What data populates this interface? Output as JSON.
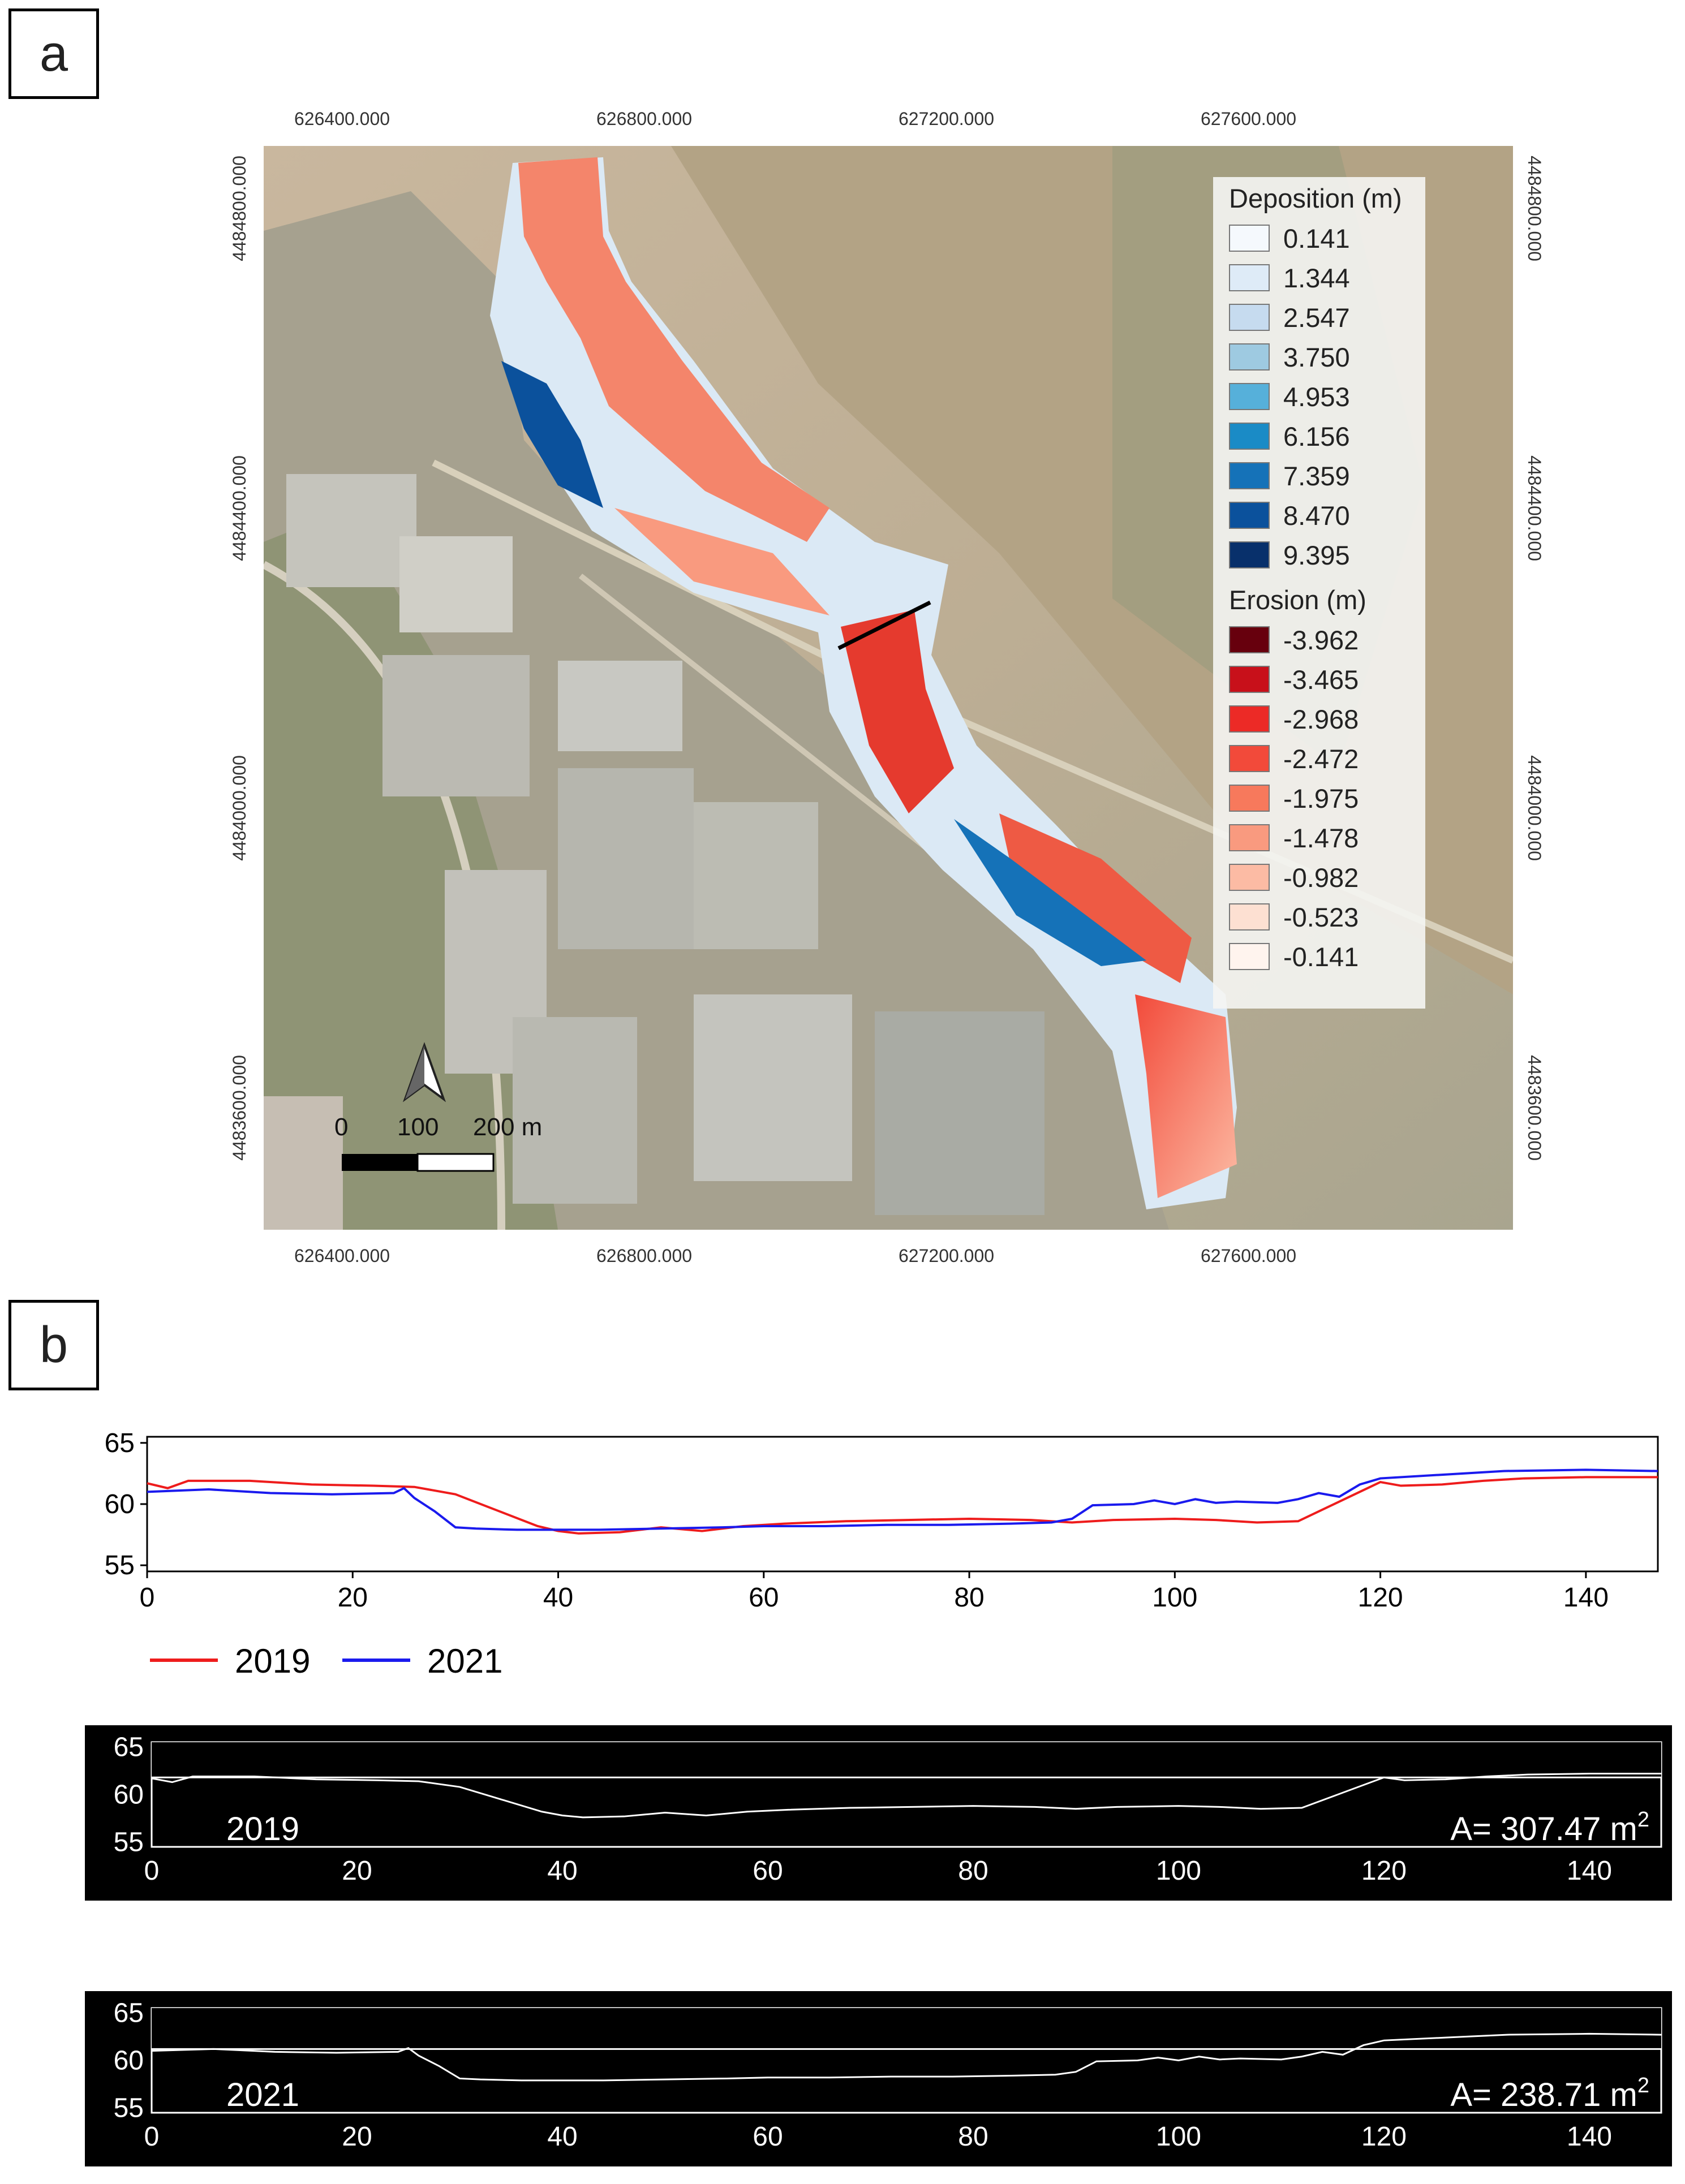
{
  "panel_a": {
    "label": "a",
    "x_ticks": [
      "626400.000",
      "626800.000",
      "627200.000",
      "627600.000"
    ],
    "y_ticks": [
      "4484800.000",
      "4484400.000",
      "4484000.000",
      "4483600.000"
    ],
    "legend": {
      "deposition_title": "Deposition (m)",
      "deposition": [
        {
          "value": "0.141",
          "color": "#f5f9fd"
        },
        {
          "value": "1.344",
          "color": "#deebf7"
        },
        {
          "value": "2.547",
          "color": "#c6dbef"
        },
        {
          "value": "3.750",
          "color": "#9ecae1"
        },
        {
          "value": "4.953",
          "color": "#56b0da"
        },
        {
          "value": "6.156",
          "color": "#1a8bc6"
        },
        {
          "value": "7.359",
          "color": "#1572b8"
        },
        {
          "value": "8.470",
          "color": "#0b519c"
        },
        {
          "value": "9.395",
          "color": "#08306b"
        }
      ],
      "erosion_title": "Erosion (m)",
      "erosion": [
        {
          "value": "-3.962",
          "color": "#67000d"
        },
        {
          "value": "-3.465",
          "color": "#c8101a"
        },
        {
          "value": "-2.968",
          "color": "#ec2a26"
        },
        {
          "value": "-2.472",
          "color": "#f24a3a"
        },
        {
          "value": "-1.975",
          "color": "#f7795c"
        },
        {
          "value": "-1.478",
          "color": "#f99a7f"
        },
        {
          "value": "-0.982",
          "color": "#fcbba4"
        },
        {
          "value": "-0.523",
          "color": "#fde0d2"
        },
        {
          "value": "-0.141",
          "color": "#fff4ee"
        }
      ]
    },
    "scale_bar": {
      "labels": [
        "0",
        "100",
        "200 m"
      ]
    },
    "north_arrow": "north-arrow-icon"
  },
  "panel_b": {
    "label": "b",
    "chart_data": [
      {
        "type": "line",
        "xlim": [
          0,
          147
        ],
        "ylim": [
          54.5,
          65.5
        ],
        "x_ticks": [
          "0",
          "20",
          "40",
          "60",
          "80",
          "100",
          "120",
          "140"
        ],
        "y_ticks": [
          "55",
          "60",
          "65"
        ],
        "series": [
          {
            "name": "2019",
            "color": "#ee1c1c",
            "x": [
              0,
              2,
              4,
              10,
              16,
              22,
              26,
              30,
              34,
              38,
              40,
              42,
              46,
              50,
              54,
              58,
              62,
              68,
              74,
              80,
              86,
              90,
              94,
              100,
              104,
              108,
              112,
              116,
              120,
              122,
              126,
              130,
              134,
              140,
              147
            ],
            "y": [
              61.7,
              61.3,
              61.9,
              61.9,
              61.6,
              61.5,
              61.4,
              60.8,
              59.5,
              58.2,
              57.8,
              57.6,
              57.7,
              58.1,
              57.8,
              58.2,
              58.4,
              58.6,
              58.7,
              58.8,
              58.7,
              58.5,
              58.7,
              58.8,
              58.7,
              58.5,
              58.6,
              60.2,
              61.8,
              61.5,
              61.6,
              61.9,
              62.1,
              62.2,
              62.2
            ]
          },
          {
            "name": "2021",
            "color": "#1a1aee",
            "x": [
              0,
              6,
              12,
              18,
              24,
              25,
              26,
              28,
              30,
              32,
              36,
              40,
              44,
              50,
              56,
              60,
              66,
              72,
              78,
              84,
              88,
              90,
              92,
              96,
              98,
              100,
              102,
              104,
              106,
              110,
              112,
              114,
              116,
              118,
              120,
              126,
              132,
              140,
              147
            ],
            "y": [
              61.0,
              61.2,
              60.9,
              60.8,
              60.9,
              61.3,
              60.5,
              59.4,
              58.1,
              58.0,
              57.9,
              57.9,
              57.9,
              58.0,
              58.1,
              58.2,
              58.2,
              58.3,
              58.3,
              58.4,
              58.5,
              58.8,
              59.9,
              60.0,
              60.3,
              60.0,
              60.4,
              60.1,
              60.2,
              60.1,
              60.4,
              60.9,
              60.6,
              61.6,
              62.1,
              62.4,
              62.7,
              62.8,
              62.7
            ]
          }
        ]
      },
      {
        "type": "area",
        "label": "2019",
        "area_text": "A= 307.47 m",
        "area_sup": "2",
        "xlim": [
          0,
          147
        ],
        "ylim": [
          54.5,
          65.5
        ],
        "x_ticks": [
          "0",
          "20",
          "40",
          "60",
          "80",
          "100",
          "120",
          "140"
        ],
        "y_ticks": [
          "55",
          "60",
          "65"
        ],
        "fill_level": 61.8
      },
      {
        "type": "area",
        "label": "2021",
        "area_text": "A= 238.71 m",
        "area_sup": "2",
        "xlim": [
          0,
          147
        ],
        "ylim": [
          54.5,
          65.5
        ],
        "x_ticks": [
          "0",
          "20",
          "40",
          "60",
          "80",
          "100",
          "120",
          "140"
        ],
        "y_ticks": [
          "55",
          "60",
          "65"
        ],
        "fill_level": 61.2
      }
    ]
  }
}
